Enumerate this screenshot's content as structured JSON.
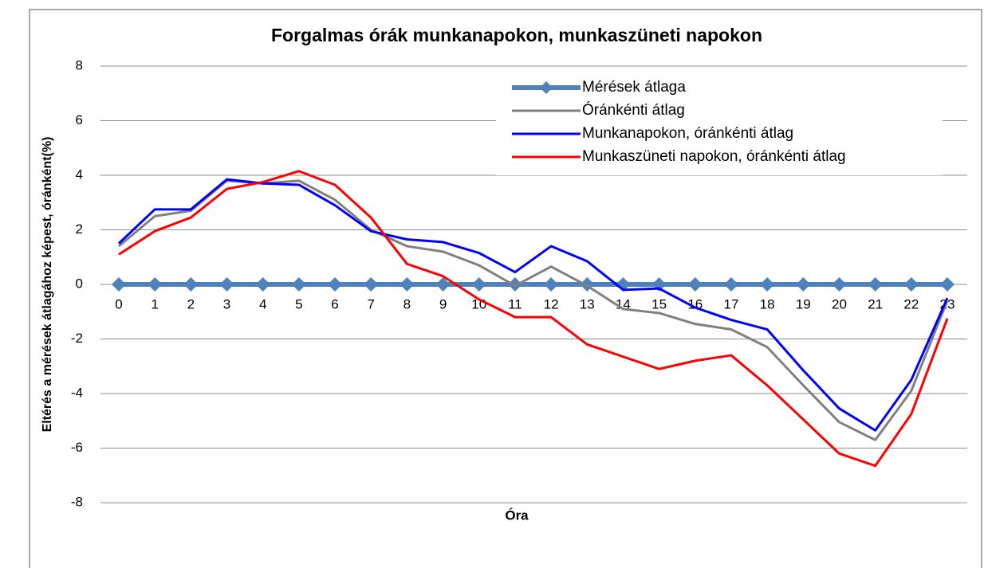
{
  "chart_data": {
    "type": "line",
    "title": "Forgalmas órák munkanapokon, munkaszüneti napokon",
    "x_label": "Óra",
    "y_label": "Eltérés a mérések átlagához képest, óránként(%)",
    "categories": [
      "0",
      "1",
      "2",
      "3",
      "4",
      "5",
      "6",
      "7",
      "8",
      "9",
      "10",
      "11",
      "12",
      "13",
      "14",
      "15",
      "16",
      "17",
      "18",
      "19",
      "20",
      "21",
      "22",
      "23"
    ],
    "series": [
      {
        "name": "Mérések átlaga",
        "color": "#4f81bd",
        "marker": "diamond",
        "values": [
          0,
          0,
          0,
          0,
          0,
          0,
          0,
          0,
          0,
          0,
          0,
          0,
          0,
          0,
          0,
          0,
          0,
          0,
          0,
          0,
          0,
          0,
          0,
          0
        ]
      },
      {
        "name": "Óránkénti átlag",
        "color": "#808080",
        "values": [
          1.4,
          2.5,
          2.7,
          3.8,
          3.7,
          3.8,
          3.1,
          2.0,
          1.4,
          1.2,
          0.7,
          -0.05,
          0.65,
          -0.05,
          -0.9,
          -1.05,
          -1.45,
          -1.65,
          -2.3,
          -3.7,
          -5.05,
          -5.7,
          -3.9,
          -0.6
        ]
      },
      {
        "name": "Munkanapokon, óránkénti átlag",
        "color": "#0000ff",
        "values": [
          1.5,
          2.75,
          2.75,
          3.85,
          3.7,
          3.65,
          2.9,
          1.95,
          1.65,
          1.55,
          1.15,
          0.45,
          1.4,
          0.85,
          -0.2,
          -0.15,
          -0.85,
          -1.3,
          -1.65,
          -3.15,
          -4.55,
          -5.35,
          -3.5,
          -0.5
        ]
      },
      {
        "name": "Munkaszüneti napokon, óránkénti átlag",
        "color": "#ff0000",
        "values": [
          1.1,
          1.95,
          2.45,
          3.5,
          3.75,
          4.15,
          3.65,
          2.45,
          0.75,
          0.3,
          -0.55,
          -1.2,
          -1.2,
          -2.2,
          -2.65,
          -3.1,
          -2.8,
          -2.6,
          -3.7,
          -4.95,
          -6.2,
          -6.65,
          -4.75,
          -1.25
        ]
      }
    ],
    "ylim": [
      -8,
      8
    ],
    "yticks": [
      -8,
      -6,
      -4,
      -2,
      0,
      2,
      4,
      6,
      8
    ],
    "grid": true,
    "legend": "upper right"
  }
}
